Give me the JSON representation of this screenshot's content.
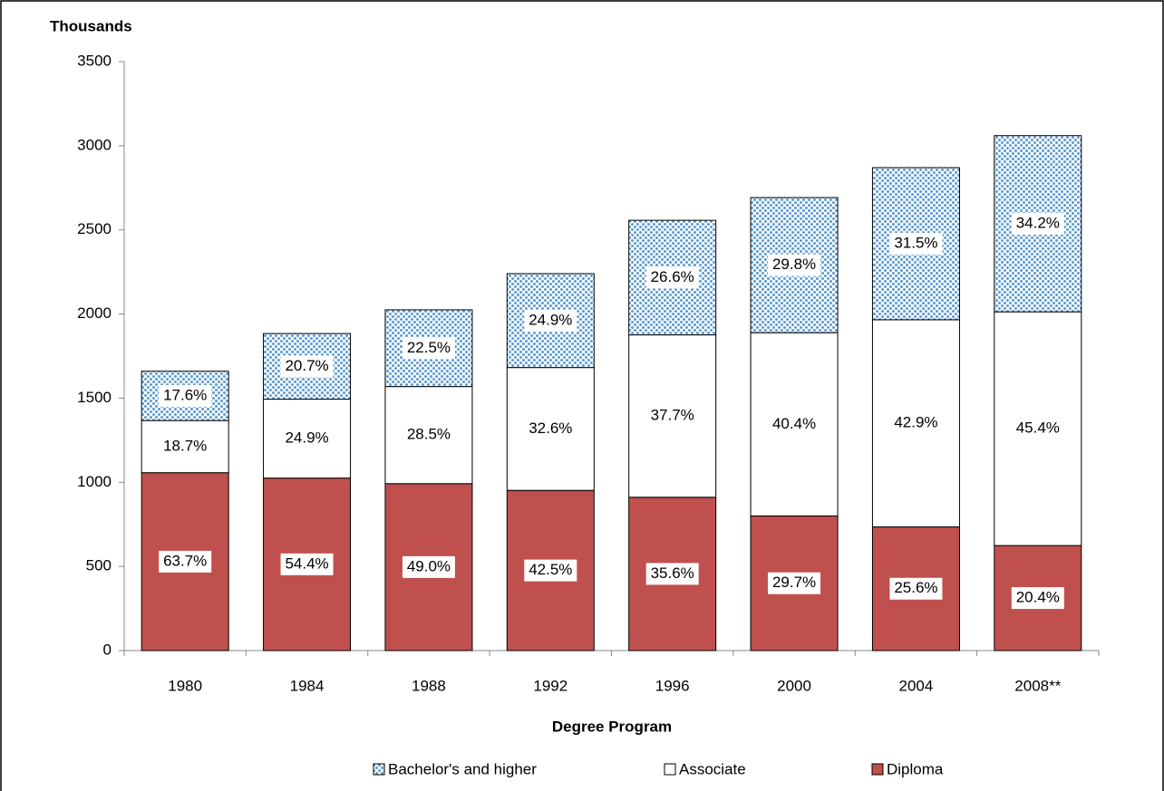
{
  "chart_data": {
    "type": "stacked_bar",
    "y_label": "Thousands",
    "x_label": "Degree Program",
    "categories": [
      "1980",
      "1984",
      "1988",
      "1992",
      "1996",
      "2000",
      "2004",
      "2008**"
    ],
    "series": [
      {
        "name": "Bachelor's and higher",
        "color": "#5b9bd5",
        "pattern": "dots",
        "values": [
          293,
          390,
          456,
          558,
          681,
          803,
          904,
          1047
        ],
        "labels": [
          "17.6%",
          "20.7%",
          "22.5%",
          "24.9%",
          "26.6%",
          "29.8%",
          "31.5%",
          "34.2%"
        ]
      },
      {
        "name": "Associate",
        "color": "#ffffff",
        "values": [
          310,
          469,
          577,
          730,
          965,
          1089,
          1231,
          1389
        ],
        "labels": [
          "18.7%",
          "24.9%",
          "28.5%",
          "32.6%",
          "37.7%",
          "40.4%",
          "42.9%",
          "45.4%"
        ]
      },
      {
        "name": "Diploma",
        "color": "#c0504d",
        "values": [
          1057,
          1025,
          992,
          952,
          911,
          800,
          735,
          624
        ],
        "labels": [
          "63.7%",
          "54.4%",
          "49.0%",
          "42.5%",
          "35.6%",
          "29.7%",
          "25.6%",
          "20.4%"
        ]
      }
    ],
    "ylim": [
      0,
      3500
    ],
    "yticks": [
      0,
      500,
      1000,
      1500,
      2000,
      2500,
      3000,
      3500
    ],
    "legend": "bottom",
    "grid": false
  }
}
